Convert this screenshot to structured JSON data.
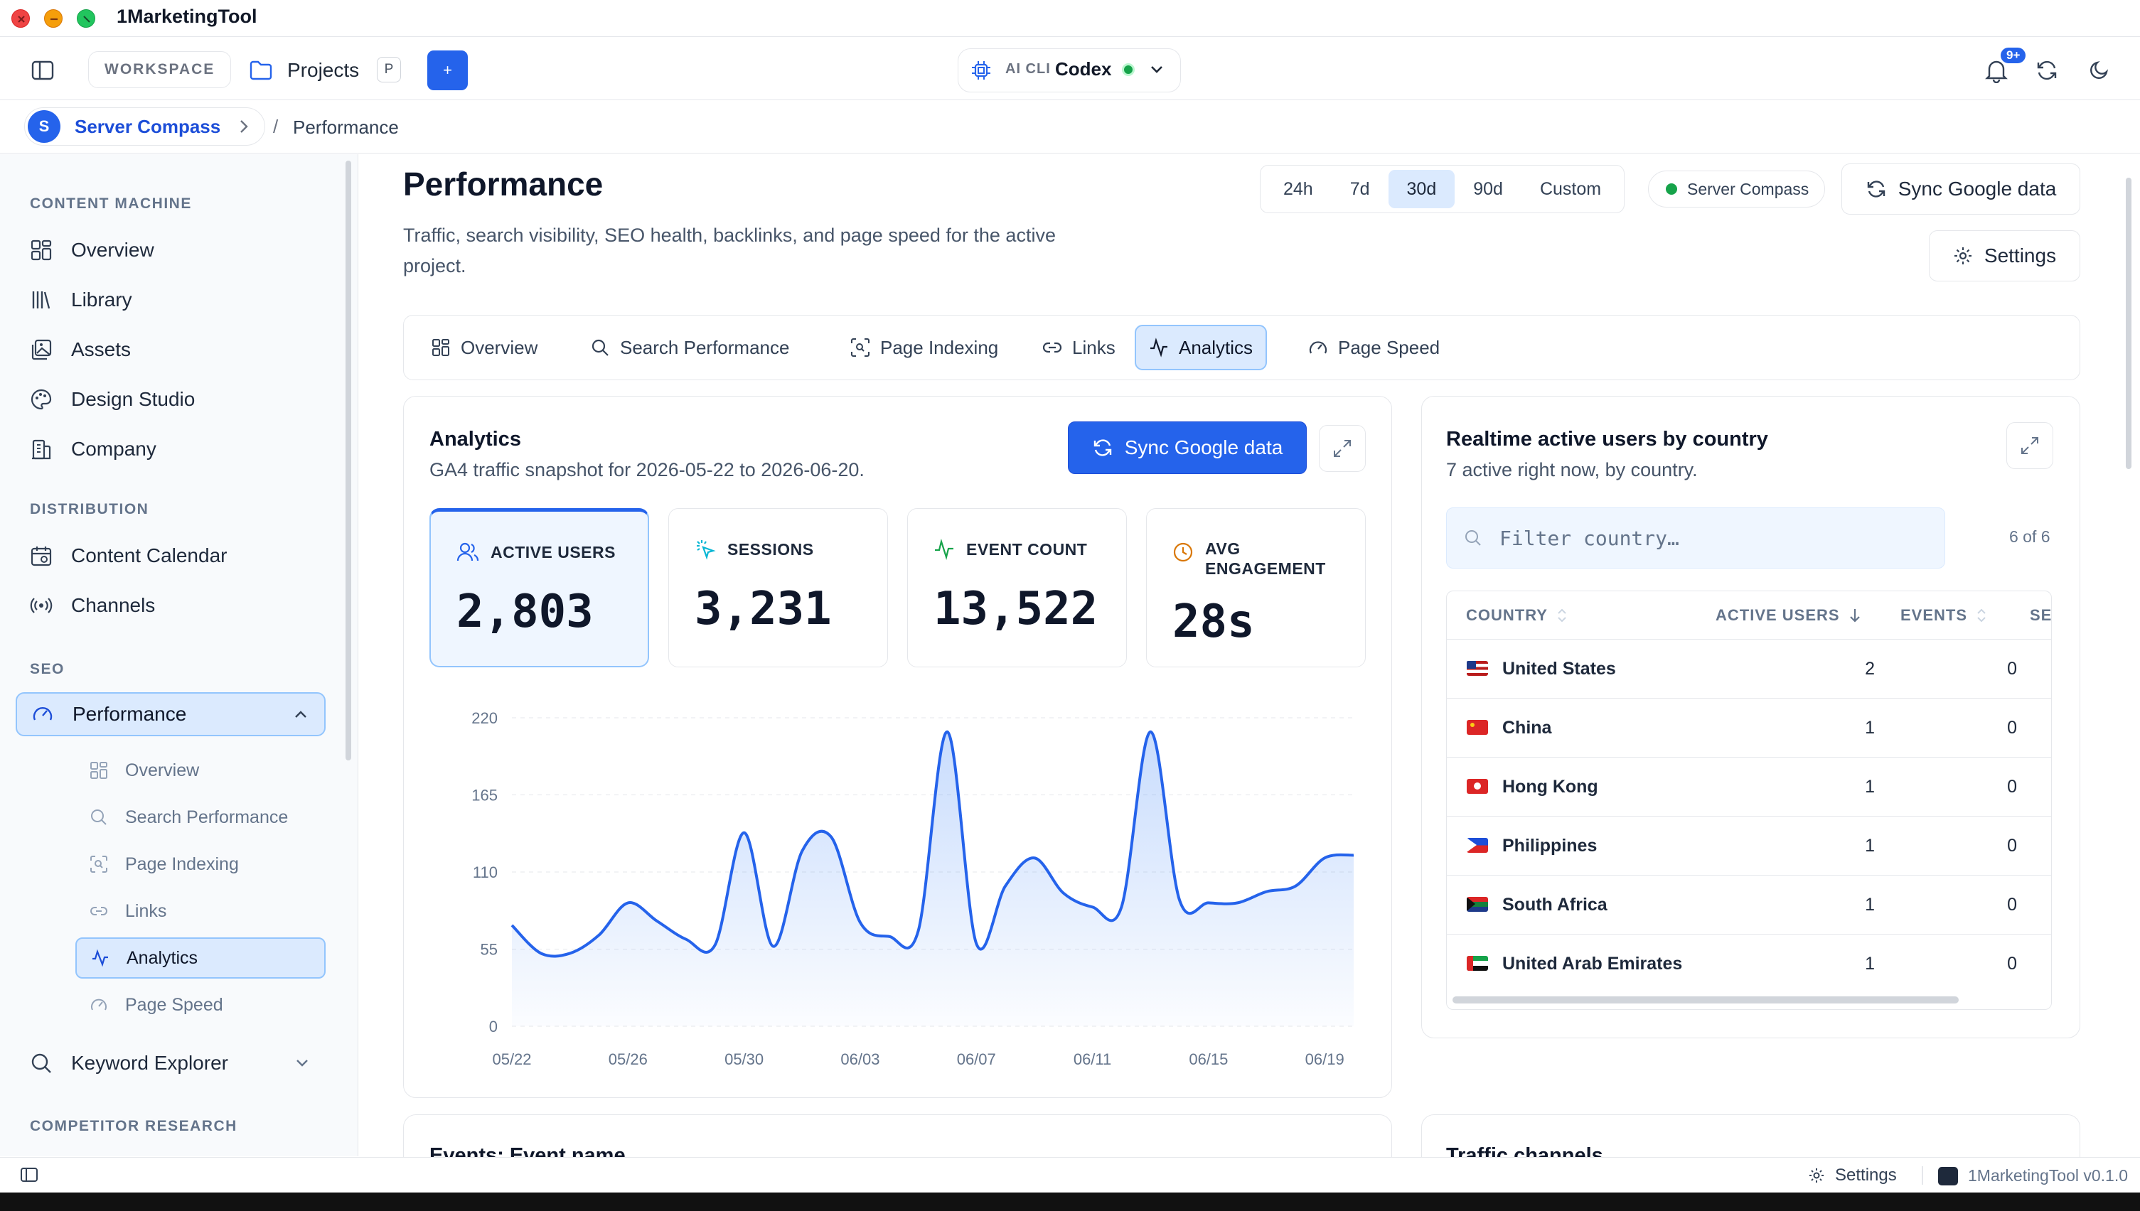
{
  "app": {
    "title": "1MarketingTool"
  },
  "toolbar": {
    "workspace_label": "WORKSPACE",
    "projects_label": "Projects",
    "projects_shortcut": "P",
    "add_label": "+",
    "ai_label": "AI CLI",
    "ai_model": "Codex",
    "notifications_badge": "9+"
  },
  "breadcrumb": {
    "avatar": "S",
    "project": "Server Compass",
    "separator": "/",
    "current": "Performance"
  },
  "sidebar": {
    "sections": [
      {
        "title": "CONTENT MACHINE"
      },
      {
        "title": "DISTRIBUTION"
      },
      {
        "title": "SEO"
      },
      {
        "title": "COMPETITOR RESEARCH"
      }
    ],
    "items": [
      {
        "label": "Overview",
        "icon": "grid-icon"
      },
      {
        "label": "Library",
        "icon": "library-icon"
      },
      {
        "label": "Assets",
        "icon": "images-icon"
      },
      {
        "label": "Design Studio",
        "icon": "palette-icon"
      },
      {
        "label": "Company",
        "icon": "building-icon"
      },
      {
        "label": "Content Calendar",
        "icon": "calendar-icon"
      },
      {
        "label": "Channels",
        "icon": "broadcast-icon"
      },
      {
        "label": "Performance",
        "icon": "gauge-icon"
      },
      {
        "label": "Keyword Explorer",
        "icon": "search-icon"
      }
    ],
    "sub_items": [
      {
        "label": "Overview"
      },
      {
        "label": "Search Performance"
      },
      {
        "label": "Page Indexing"
      },
      {
        "label": "Links"
      },
      {
        "label": "Analytics"
      },
      {
        "label": "Page Speed"
      }
    ]
  },
  "page": {
    "title": "Performance",
    "description": "Traffic, search visibility, SEO health, backlinks, and page speed for the active project.",
    "ranges": [
      "24h",
      "7d",
      "30d",
      "90d",
      "Custom"
    ],
    "active_range": "30d",
    "project_badge": "Server Compass",
    "sync_label": "Sync Google data",
    "settings_label": "Settings",
    "tabs": [
      "Overview",
      "Search Performance",
      "Page Indexing",
      "Links",
      "Analytics",
      "Page Speed"
    ],
    "active_tab": "Analytics"
  },
  "analytics": {
    "title": "Analytics",
    "subtitle": "GA4 traffic snapshot for 2026-05-22 to 2026-06-20.",
    "sync_label": "Sync Google data",
    "stats": [
      {
        "label": "ACTIVE USERS",
        "value": "2,803",
        "color": "#2563eb"
      },
      {
        "label": "SESSIONS",
        "value": "3,231",
        "color": "#06b6d4"
      },
      {
        "label": "EVENT COUNT",
        "value": "13,522",
        "color": "#16a34a"
      },
      {
        "label": "AVG ENGAGEMENT",
        "value": "28s",
        "color": "#d97706"
      }
    ]
  },
  "chart_data": {
    "type": "area",
    "x_ticks": [
      "05/22",
      "05/26",
      "05/30",
      "06/03",
      "06/07",
      "06/11",
      "06/15",
      "06/19"
    ],
    "y_ticks": [
      0,
      55,
      110,
      165,
      220
    ],
    "ylim": [
      0,
      220
    ],
    "x": [
      "05/22",
      "05/23",
      "05/24",
      "05/25",
      "05/26",
      "05/27",
      "05/28",
      "05/29",
      "05/30",
      "05/31",
      "06/01",
      "06/02",
      "06/03",
      "06/04",
      "06/05",
      "06/06",
      "06/07",
      "06/08",
      "06/09",
      "06/10",
      "06/11",
      "06/12",
      "06/13",
      "06/14",
      "06/15",
      "06/16",
      "06/17",
      "06/18",
      "06/19",
      "06/20"
    ],
    "values": [
      72,
      52,
      52,
      65,
      88,
      75,
      62,
      58,
      138,
      57,
      125,
      135,
      74,
      64,
      68,
      210,
      59,
      100,
      120,
      95,
      85,
      85,
      210,
      90,
      88,
      88,
      96,
      100,
      120,
      122
    ],
    "color": "#2563eb",
    "grid": true
  },
  "realtime": {
    "title": "Realtime active users by country",
    "subtitle": "7 active right now, by country.",
    "filter_placeholder": "Filter country…",
    "count": "6 of 6",
    "columns": [
      "COUNTRY",
      "ACTIVE USERS",
      "EVENTS",
      "SE"
    ],
    "rows": [
      {
        "country": "United States",
        "users": "2",
        "events": "0",
        "flag": [
          "#b91c1c",
          "#1e3a8a"
        ]
      },
      {
        "country": "China",
        "users": "1",
        "events": "0",
        "flag": [
          "#dc2626",
          "#dc2626"
        ]
      },
      {
        "country": "Hong Kong",
        "users": "1",
        "events": "0",
        "flag": [
          "#dc2626",
          "#dc2626"
        ]
      },
      {
        "country": "Philippines",
        "users": "1",
        "events": "0",
        "flag": [
          "#1d4ed8",
          "#dc2626"
        ]
      },
      {
        "country": "South Africa",
        "users": "1",
        "events": "0",
        "flag": [
          "#15803d",
          "#1e3a8a"
        ]
      },
      {
        "country": "United Arab Emirates",
        "users": "1",
        "events": "0",
        "flag": [
          "#16a34a",
          "#dc2626"
        ]
      }
    ]
  },
  "lower_cards": {
    "events_title": "Events: Event name",
    "traffic_title": "Traffic channels"
  },
  "statusbar": {
    "settings_label": "Settings",
    "version": "1MarketingTool v0.1.0"
  }
}
